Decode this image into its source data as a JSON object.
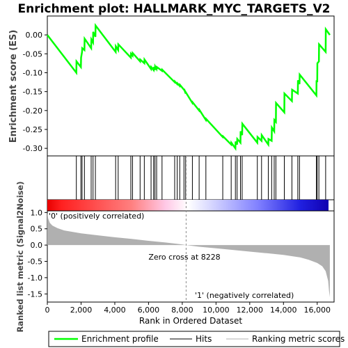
{
  "title": "Enrichment plot: HALLMARK_MYC_TARGETS_V2",
  "colors": {
    "es_line": "#00ff00",
    "hits": "#000000",
    "metric": "#b0b0b0",
    "pos_label": "#cc0000",
    "neg_label": "#2222cc",
    "zero_line": "#888888"
  },
  "chart_data": {
    "type": "line",
    "xlim": [
      0,
      17000
    ],
    "x_ticks": [
      0,
      2000,
      4000,
      6000,
      8000,
      10000,
      12000,
      14000,
      16000
    ],
    "x_tick_labels": [
      "0",
      "2,000",
      "4,000",
      "6,000",
      "8,000",
      "10,000",
      "12,000",
      "14,000",
      "16,000"
    ],
    "xlabel": "Rank in Ordered Dataset",
    "es_panel": {
      "ylabel": "Enrichment score (ES)",
      "ylim": [
        -0.32,
        0.05
      ],
      "y_ticks": [
        0.0,
        -0.05,
        -0.1,
        -0.15,
        -0.2,
        -0.25,
        -0.3
      ],
      "y_tick_labels": [
        "0.00",
        "-0.05",
        "-0.10",
        "-0.15",
        "-0.20",
        "-0.25",
        "-0.30"
      ],
      "series": [
        {
          "name": "Enrichment profile",
          "x": [
            0,
            1720,
            1730,
            1990,
            2000,
            2060,
            2070,
            2200,
            2210,
            2600,
            2610,
            2710,
            2720,
            2850,
            2860,
            4050,
            4060,
            4200,
            4210,
            4950,
            4960,
            5050,
            5060,
            5500,
            5510,
            5750,
            5760,
            6150,
            6160,
            6300,
            6310,
            6380,
            6390,
            6480,
            6490,
            6800,
            6810,
            7550,
            7560,
            7700,
            7710,
            7850,
            7860,
            8100,
            8110,
            8200,
            8210,
            8600,
            8610,
            9000,
            9010,
            9400,
            9410,
            10400,
            10410,
            10900,
            10910,
            11150,
            11160,
            11250,
            11260,
            11450,
            11460,
            11550,
            11560,
            12450,
            12460,
            12700,
            12710,
            13100,
            13110,
            13300,
            13310,
            13450,
            13460,
            13550,
            13560,
            14050,
            14060,
            14500,
            14510,
            14850,
            14860,
            14950,
            14960,
            15950,
            15960,
            16000,
            16010,
            16100,
            16110,
            16500,
            16510,
            16750
          ],
          "y": [
            0.0,
            -0.1,
            -0.07,
            -0.085,
            -0.06,
            -0.045,
            -0.035,
            -0.04,
            -0.01,
            -0.035,
            -0.012,
            -0.02,
            0.008,
            -0.005,
            0.025,
            -0.045,
            -0.03,
            -0.04,
            -0.025,
            -0.06,
            -0.05,
            -0.055,
            -0.048,
            -0.07,
            -0.065,
            -0.075,
            -0.065,
            -0.09,
            -0.085,
            -0.093,
            -0.085,
            -0.093,
            -0.083,
            -0.09,
            -0.085,
            -0.095,
            -0.092,
            -0.125,
            -0.123,
            -0.13,
            -0.128,
            -0.135,
            -0.132,
            -0.145,
            -0.143,
            -0.155,
            -0.152,
            -0.18,
            -0.178,
            -0.2,
            -0.198,
            -0.225,
            -0.222,
            -0.27,
            -0.268,
            -0.29,
            -0.285,
            -0.3,
            -0.282,
            -0.29,
            -0.275,
            -0.285,
            -0.255,
            -0.265,
            -0.235,
            -0.285,
            -0.27,
            -0.28,
            -0.265,
            -0.29,
            -0.275,
            -0.28,
            -0.245,
            -0.255,
            -0.225,
            -0.23,
            -0.18,
            -0.205,
            -0.155,
            -0.175,
            -0.145,
            -0.155,
            -0.12,
            -0.13,
            -0.105,
            -0.16,
            -0.12,
            -0.125,
            -0.075,
            -0.07,
            -0.025,
            -0.045,
            0.015,
            0.0
          ]
        }
      ]
    },
    "hits": [
      1720,
      1990,
      2060,
      2200,
      2600,
      2710,
      2850,
      4050,
      4200,
      4950,
      5050,
      5500,
      5750,
      6150,
      6300,
      6380,
      6480,
      6800,
      7550,
      7700,
      7850,
      8100,
      8200,
      8600,
      9000,
      9400,
      10400,
      10900,
      11150,
      11250,
      11450,
      11550,
      12450,
      12700,
      13100,
      13300,
      13450,
      13550,
      14050,
      14500,
      14850,
      14950,
      15950,
      16000,
      16100,
      16500
    ],
    "ranked_panel": {
      "ylabel": "Ranked list metric (Signal2Noise)",
      "ylim": [
        -1.75,
        1.05
      ],
      "y_ticks": [
        1.0,
        0.5,
        0.0,
        -0.5,
        -1.0,
        -1.5
      ],
      "y_tick_labels": [
        "1.0",
        "0.5",
        "0.0",
        "-0.5",
        "-1.0",
        "-1.5"
      ],
      "x": [
        0,
        50,
        150,
        300,
        600,
        1000,
        2000,
        3000,
        4000,
        5000,
        6000,
        7000,
        8000,
        8228,
        9000,
        10000,
        11000,
        12000,
        13000,
        14000,
        15000,
        15500,
        16000,
        16300,
        16500,
        16650,
        16700,
        16750
      ],
      "y": [
        1.0,
        0.82,
        0.68,
        0.6,
        0.52,
        0.45,
        0.36,
        0.3,
        0.24,
        0.19,
        0.13,
        0.08,
        0.02,
        0.0,
        -0.05,
        -0.1,
        -0.15,
        -0.2,
        -0.25,
        -0.3,
        -0.38,
        -0.45,
        -0.55,
        -0.65,
        -0.8,
        -1.1,
        -1.4,
        -1.6
      ],
      "zero_cross_label": "Zero cross at 8228",
      "zero_cross_x": 8228,
      "pos_label": "'0' (positively correlated)",
      "neg_label": "'1' (negatively correlated)"
    },
    "legend": {
      "placement": "bottom",
      "entries": [
        "Enrichment profile",
        "Hits",
        "Ranking metric scores"
      ]
    }
  }
}
